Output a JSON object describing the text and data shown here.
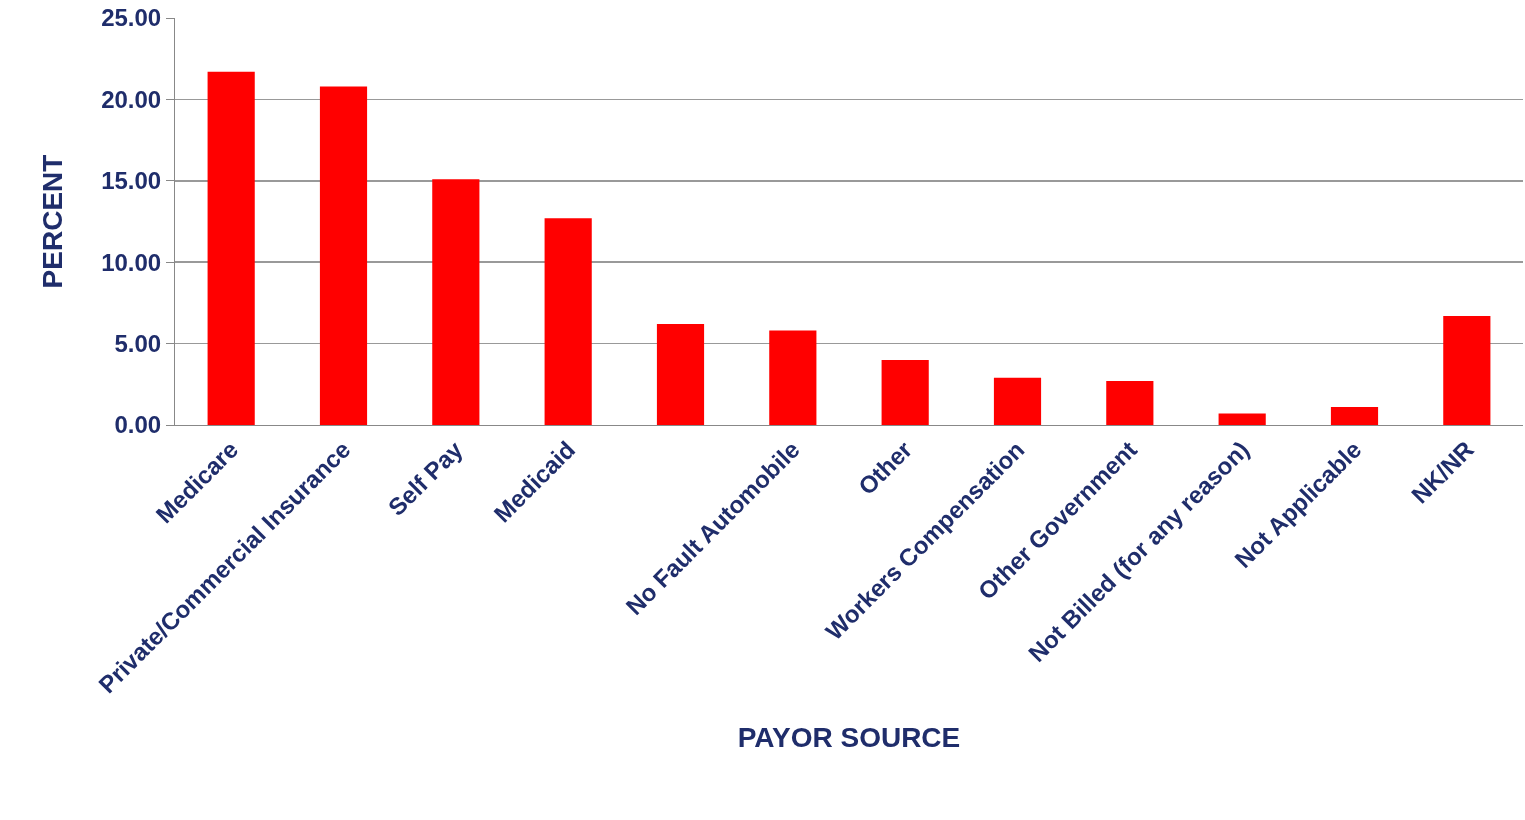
{
  "chart_data": {
    "type": "bar",
    "xlabel": "PAYOR SOURCE",
    "ylabel": "PERCENT",
    "categories": [
      "Medicare",
      "Private/Commercial Insurance",
      "Self Pay",
      "Medicaid",
      null,
      "No Fault Automobile",
      "Other",
      "Workers Compensation",
      "Other Government",
      "Not Billed (for any reason)",
      "Not Applicable",
      "NK/NR"
    ],
    "values": [
      21.7,
      20.8,
      15.1,
      12.7,
      6.2,
      5.8,
      4.0,
      2.9,
      2.7,
      0.7,
      1.1,
      6.7
    ],
    "color": "#ff0000",
    "ylim": [
      0,
      25
    ],
    "yticks": [
      {
        "value": 0,
        "label": "0.00"
      },
      {
        "value": 5,
        "label": "5.00"
      },
      {
        "value": 10,
        "label": "10.00"
      },
      {
        "value": 15,
        "label": "15.00"
      },
      {
        "value": 20,
        "label": "20.00"
      },
      {
        "value": 25,
        "label": "25.00"
      }
    ],
    "grid": "y",
    "legend": false
  }
}
